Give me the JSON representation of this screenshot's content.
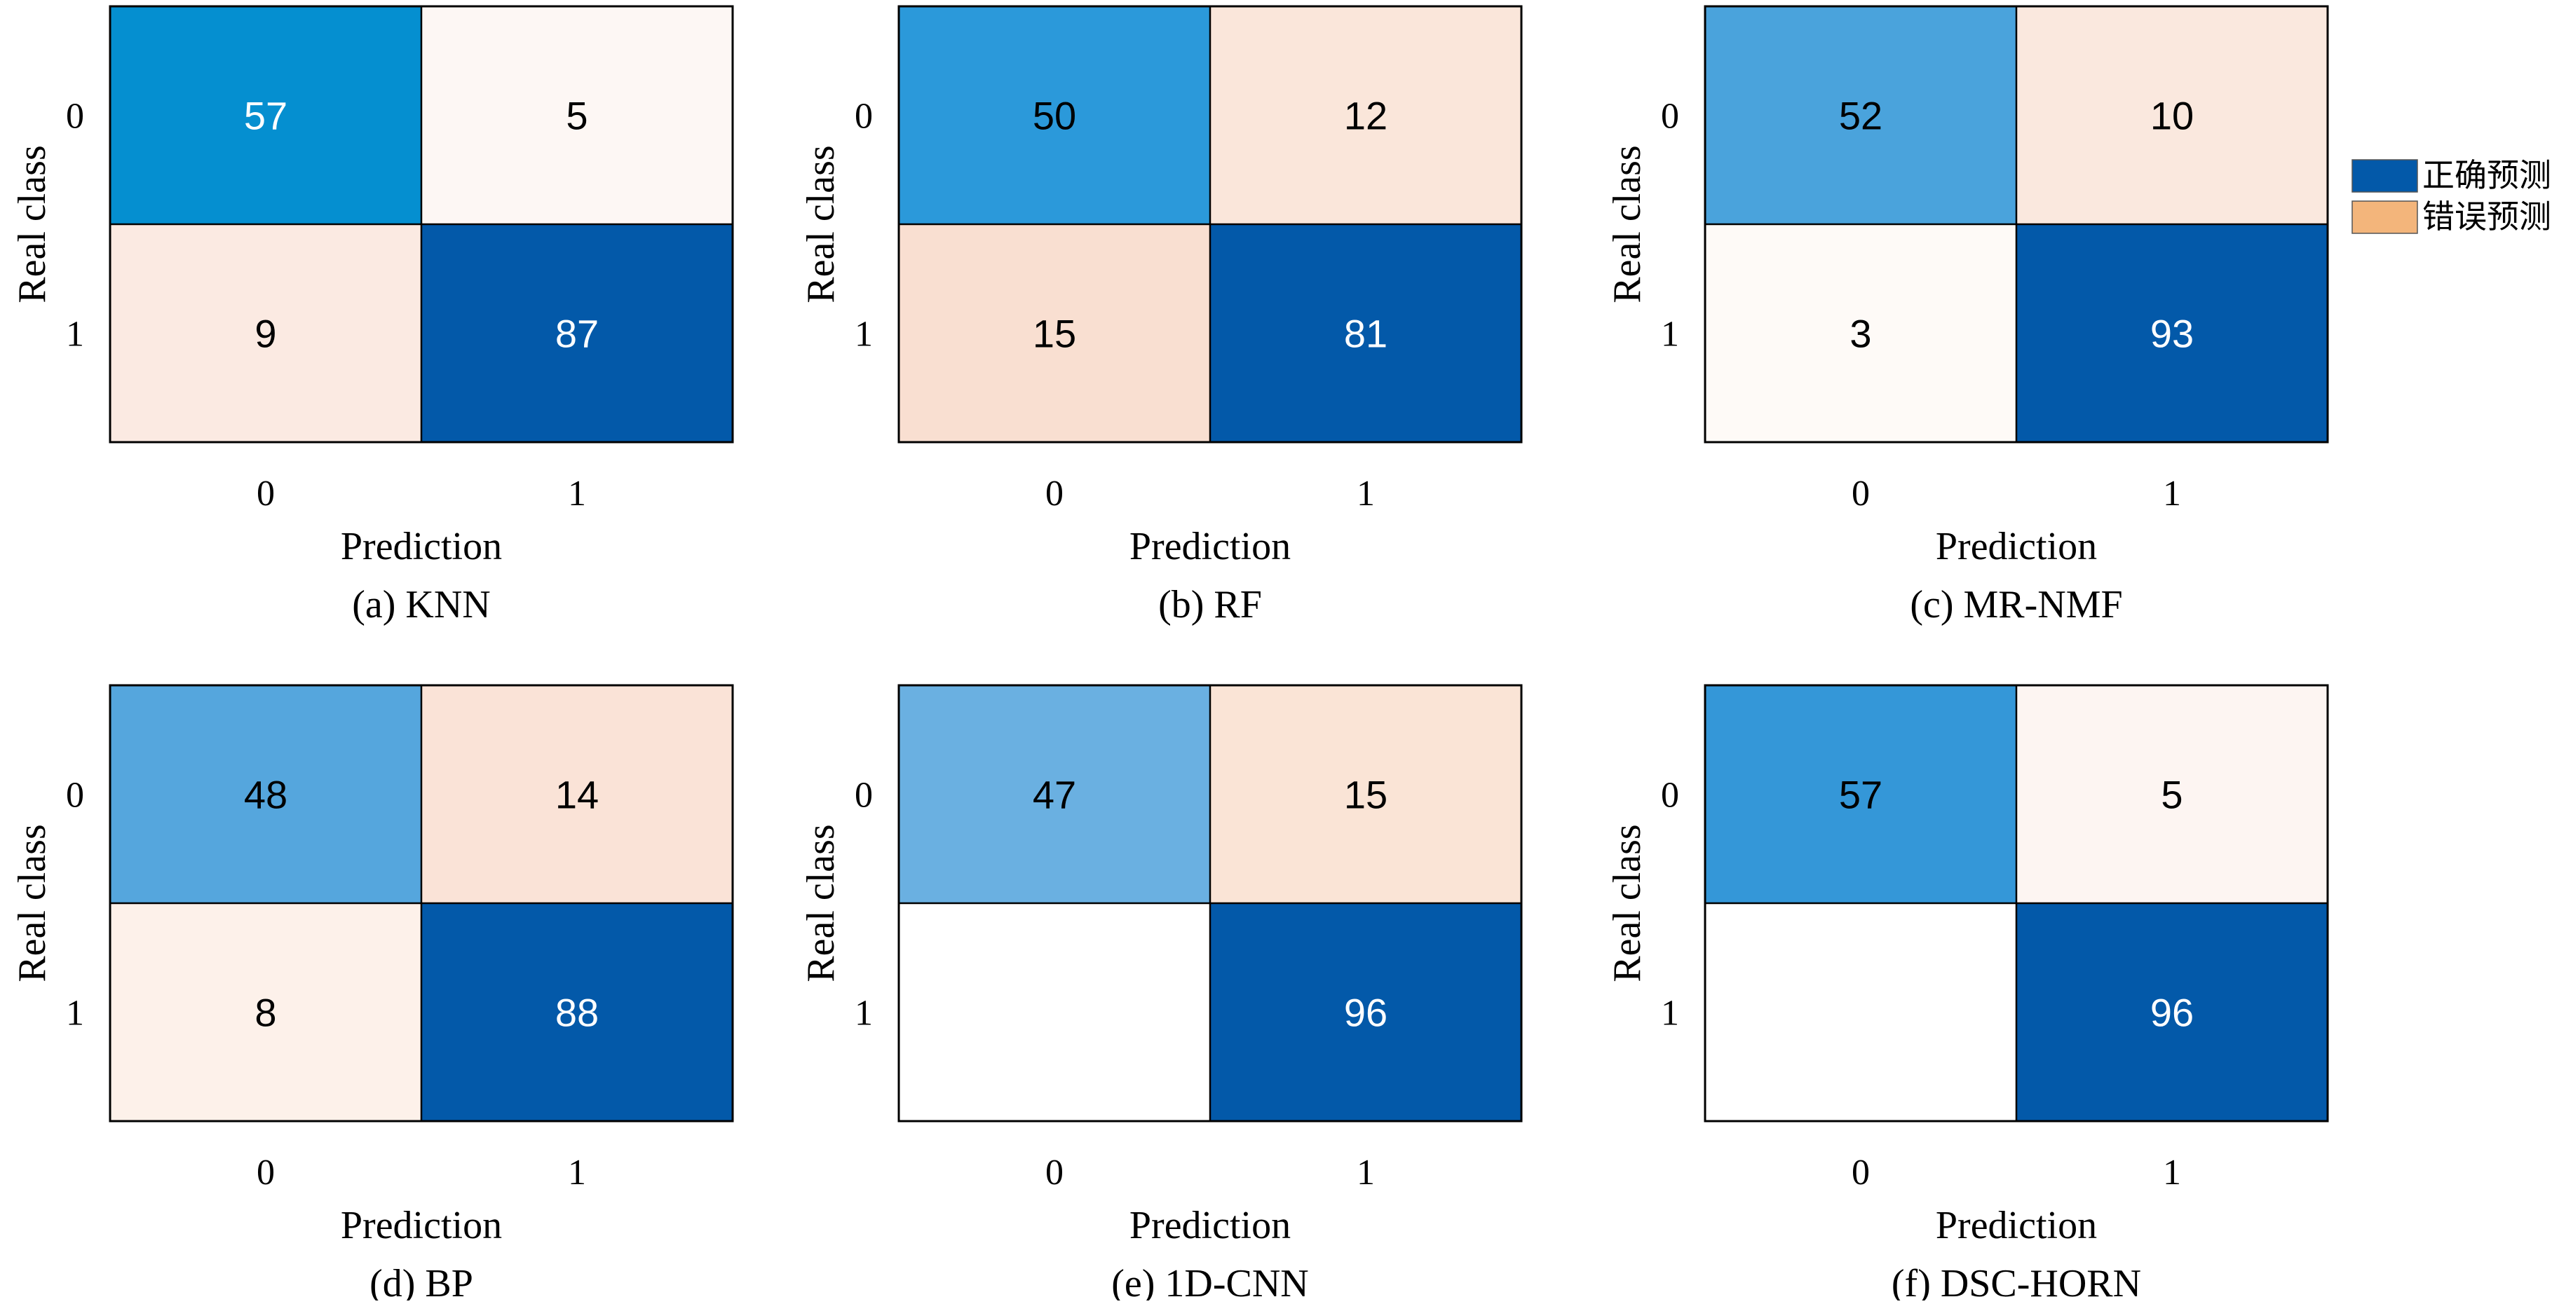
{
  "legend": {
    "items": [
      {
        "label": "正确预测",
        "color": "#0359A9"
      },
      {
        "label": "错误预测",
        "color": "#F3B57B"
      }
    ]
  },
  "chart_data": [
    {
      "type": "heatmap",
      "caption": "(a) KNN",
      "xlabel": "Prediction",
      "ylabel": "Real class",
      "x_ticks": [
        "0",
        "1"
      ],
      "y_ticks": [
        "0",
        "1"
      ],
      "matrix": [
        [
          57,
          5
        ],
        [
          9,
          87
        ]
      ],
      "labels": [
        [
          "57",
          "5"
        ],
        [
          "9",
          "87"
        ]
      ],
      "cell_colors": [
        [
          "#058FD0",
          "#FDF7F4"
        ],
        [
          "#FBEAE2",
          "#0359A9"
        ]
      ]
    },
    {
      "type": "heatmap",
      "caption": "(b) RF",
      "xlabel": "Prediction",
      "ylabel": "Real class",
      "x_ticks": [
        "0",
        "1"
      ],
      "y_ticks": [
        "0",
        "1"
      ],
      "matrix": [
        [
          50,
          12
        ],
        [
          15,
          81
        ]
      ],
      "labels": [
        [
          "50",
          "12"
        ],
        [
          "15",
          "81"
        ]
      ],
      "cell_colors": [
        [
          "#2B99DA",
          "#FAE6DA"
        ],
        [
          "#F9DFD1",
          "#0359A9"
        ]
      ]
    },
    {
      "type": "heatmap",
      "caption": "(c) MR-NMF",
      "xlabel": "Prediction",
      "ylabel": "Real class",
      "x_ticks": [
        "0",
        "1"
      ],
      "y_ticks": [
        "0",
        "1"
      ],
      "matrix": [
        [
          52,
          10
        ],
        [
          3,
          93
        ]
      ],
      "labels": [
        [
          "52",
          "10"
        ],
        [
          "3",
          "93"
        ]
      ],
      "cell_colors": [
        [
          "#4AA3DC",
          "#FAE8DE"
        ],
        [
          "#FEFAF7",
          "#0359A9"
        ]
      ]
    },
    {
      "type": "heatmap",
      "caption": "(d) BP",
      "xlabel": "Prediction",
      "ylabel": "Real class",
      "x_ticks": [
        "0",
        "1"
      ],
      "y_ticks": [
        "0",
        "1"
      ],
      "matrix": [
        [
          48,
          14
        ],
        [
          8,
          88
        ]
      ],
      "labels": [
        [
          "48",
          "14"
        ],
        [
          "8",
          "88"
        ]
      ],
      "cell_colors": [
        [
          "#55A6DD",
          "#FAE3D7"
        ],
        [
          "#FDF1EA",
          "#0359A9"
        ]
      ]
    },
    {
      "type": "heatmap",
      "caption": "(e) 1D-CNN",
      "xlabel": "Prediction",
      "ylabel": "Real class",
      "x_ticks": [
        "0",
        "1"
      ],
      "y_ticks": [
        "0",
        "1"
      ],
      "matrix": [
        [
          47,
          15
        ],
        [
          null,
          96
        ]
      ],
      "labels": [
        [
          "47",
          "15"
        ],
        [
          "",
          "96"
        ]
      ],
      "cell_colors": [
        [
          "#6AB0E1",
          "#FAE4D6"
        ],
        [
          "#FFFFFF",
          "#0359A9"
        ]
      ]
    },
    {
      "type": "heatmap",
      "caption": "(f) DSC-HORN",
      "xlabel": "Prediction",
      "ylabel": "Real class",
      "x_ticks": [
        "0",
        "1"
      ],
      "y_ticks": [
        "0",
        "1"
      ],
      "matrix": [
        [
          57,
          5
        ],
        [
          null,
          96
        ]
      ],
      "labels": [
        [
          "57",
          "5"
        ],
        [
          "",
          "96"
        ]
      ],
      "cell_colors": [
        [
          "#3497D8",
          "#FDF5F2"
        ],
        [
          "#FFFFFF",
          "#0359A9"
        ]
      ]
    }
  ]
}
